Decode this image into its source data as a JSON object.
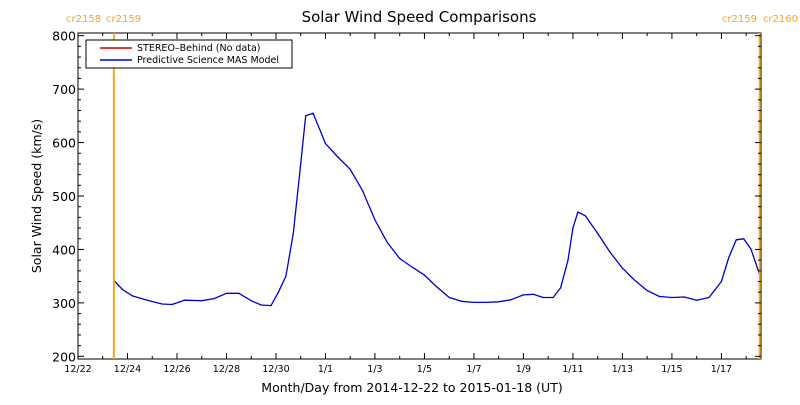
{
  "chart_data": {
    "type": "line",
    "title": "Solar Wind Speed Comparisons",
    "xlabel": "Month/Day from 2014-12-22 to 2015-01-18 (UT)",
    "ylabel": "Solar Wind Speed (km/s)",
    "x_unit": "days since 2014-12-22 00:00 UT",
    "xlim": [
      0,
      27.6
    ],
    "ylim": [
      195,
      805
    ],
    "yticks": [
      200,
      300,
      400,
      500,
      600,
      700,
      800
    ],
    "xticks": [
      {
        "x": 0,
        "label": "12/22"
      },
      {
        "x": 2,
        "label": "12/24"
      },
      {
        "x": 4,
        "label": "12/26"
      },
      {
        "x": 6,
        "label": "12/28"
      },
      {
        "x": 8,
        "label": "12/30"
      },
      {
        "x": 10,
        "label": "1/1"
      },
      {
        "x": 12,
        "label": "1/3"
      },
      {
        "x": 14,
        "label": "1/5"
      },
      {
        "x": 16,
        "label": "1/7"
      },
      {
        "x": 18,
        "label": "1/9"
      },
      {
        "x": 20,
        "label": "1/11"
      },
      {
        "x": 22,
        "label": "1/13"
      },
      {
        "x": 24,
        "label": "1/15"
      },
      {
        "x": 26,
        "label": "1/17"
      }
    ],
    "legend": {
      "position": "top-left",
      "entries": [
        {
          "label": "STEREO–Behind (No data)",
          "color": "#cc0000"
        },
        {
          "label": "Predictive Science MAS Model",
          "color": "#0000cc"
        }
      ]
    },
    "markers": [
      {
        "x": 1.45,
        "color": "#f5a623",
        "labels": [
          "cr2158",
          "cr2159"
        ],
        "label_position": "top-left"
      },
      {
        "x": 27.55,
        "color": "#f5a623",
        "labels": [
          "cr2159",
          "cr2160"
        ],
        "label_position": "top-right"
      }
    ],
    "series": [
      {
        "name": "Predictive Science MAS Model",
        "color": "#0000cc",
        "x": [
          1.45,
          1.8,
          2.2,
          2.8,
          3.4,
          3.8,
          4.3,
          5.0,
          5.5,
          6.0,
          6.5,
          7.0,
          7.4,
          7.8,
          8.1,
          8.4,
          8.7,
          9.0,
          9.2,
          9.5,
          10.0,
          10.5,
          11.0,
          11.5,
          12.0,
          12.5,
          13.0,
          13.5,
          14.0,
          14.5,
          15.0,
          15.5,
          16.0,
          16.5,
          17.0,
          17.5,
          18.0,
          18.4,
          18.8,
          19.2,
          19.5,
          19.8,
          20.0,
          20.2,
          20.5,
          21.0,
          21.5,
          22.0,
          22.5,
          23.0,
          23.5,
          24.0,
          24.5,
          25.0,
          25.5,
          26.0,
          26.3,
          26.6,
          26.9,
          27.2,
          27.55
        ],
        "y": [
          342,
          325,
          313,
          305,
          298,
          297,
          305,
          304,
          308,
          318,
          318,
          304,
          296,
          295,
          320,
          350,
          430,
          560,
          650,
          655,
          598,
          573,
          550,
          510,
          455,
          413,
          383,
          367,
          352,
          330,
          310,
          303,
          301,
          301,
          302,
          306,
          315,
          316,
          310,
          310,
          328,
          380,
          440,
          470,
          463,
          430,
          395,
          365,
          342,
          323,
          312,
          310,
          311,
          305,
          310,
          340,
          385,
          418,
          420,
          400,
          352
        ]
      }
    ]
  }
}
